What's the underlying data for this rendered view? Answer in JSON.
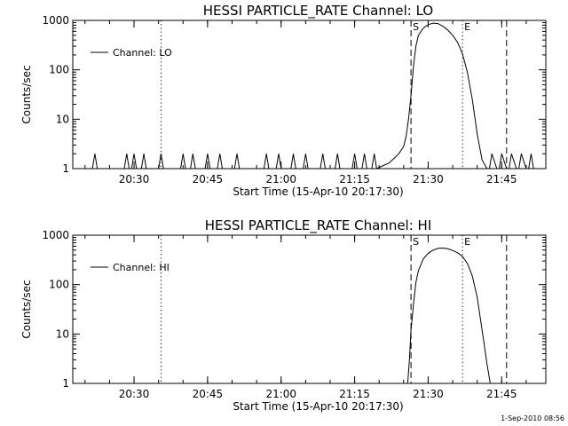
{
  "footer": "1-Sep-2010 08:56",
  "chart_data": [
    {
      "type": "line",
      "title": "HESSI PARTICLE_RATE Channel: LO",
      "xlabel": "Start Time (15-Apr-10 20:17:30)",
      "ylabel": "Counts/sec",
      "yscale": "log",
      "ylim": [
        1,
        1000
      ],
      "xlim": [
        "20:17:30",
        "21:54:00"
      ],
      "yticks": [
        "1",
        "10",
        "100",
        "1000"
      ],
      "xticks": [
        "20:30",
        "20:45",
        "21:00",
        "21:15",
        "21:30",
        "21:45"
      ],
      "legend": {
        "position": "top-left",
        "entries": [
          "Channel: LO"
        ]
      },
      "markers": [
        {
          "label": "S",
          "time": "21:26:30",
          "style": "dashed"
        },
        {
          "label": "E",
          "time": "21:37:00",
          "style": "dotted"
        },
        {
          "label": "",
          "time": "21:46:00",
          "style": "dashed"
        },
        {
          "label": "",
          "time": "20:35:30",
          "style": "dotted"
        },
        {
          "label": "",
          "time": "21:54:30",
          "style": "dotted"
        }
      ],
      "series": [
        {
          "name": "Channel: LO",
          "x": [
            "20:17:30",
            "20:21:30",
            "20:22:00",
            "20:22:30",
            "20:28:00",
            "20:28:30",
            "20:29:00",
            "20:29:30",
            "20:30:00",
            "20:30:30",
            "20:31:30",
            "20:32:00",
            "20:32:30",
            "20:35:00",
            "20:35:30",
            "20:36:00",
            "20:39:30",
            "20:40:00",
            "20:40:30",
            "20:41:30",
            "20:42:00",
            "20:42:30",
            "20:44:30",
            "20:45:00",
            "20:45:30",
            "20:47:00",
            "20:47:30",
            "20:48:00",
            "20:50:30",
            "20:51:00",
            "20:51:30",
            "20:56:30",
            "20:57:00",
            "20:57:30",
            "20:59:00",
            "20:59:30",
            "21:00:00",
            "21:02:00",
            "21:02:30",
            "21:03:00",
            "21:04:30",
            "21:05:00",
            "21:05:30",
            "21:08:00",
            "21:08:30",
            "21:09:00",
            "21:11:00",
            "21:11:30",
            "21:12:00",
            "21:14:30",
            "21:15:00",
            "21:15:30",
            "21:16:30",
            "21:17:00",
            "21:17:30",
            "21:18:30",
            "21:19:00",
            "21:19:30",
            "21:22:00",
            "21:23:00",
            "21:24:00",
            "21:25:00",
            "21:25:30",
            "21:26:00",
            "21:26:30",
            "21:27:00",
            "21:27:30",
            "21:28:00",
            "21:29:00",
            "21:30:00",
            "21:31:00",
            "21:32:00",
            "21:33:00",
            "21:34:00",
            "21:35:00",
            "21:36:00",
            "21:37:00",
            "21:38:00",
            "21:39:00",
            "21:40:00",
            "21:41:00",
            "21:42:00",
            "21:42:30",
            "21:43:00",
            "21:44:00",
            "21:44:30",
            "21:45:00",
            "21:46:00",
            "21:46:30",
            "21:47:00",
            "21:48:00",
            "21:48:30",
            "21:49:00",
            "21:50:00",
            "21:50:30",
            "21:51:00",
            "21:51:30",
            "21:52:00",
            "21:54:00"
          ],
          "y": [
            1,
            1,
            2,
            1,
            1,
            2,
            1,
            1,
            2,
            1,
            1,
            2,
            1,
            1,
            2,
            1,
            1,
            2,
            1,
            1,
            2,
            1,
            1,
            2,
            1,
            1,
            2,
            1,
            1,
            2,
            1,
            1,
            2,
            1,
            1,
            2,
            1,
            1,
            2,
            1,
            1,
            2,
            1,
            1,
            2,
            1,
            1,
            2,
            1,
            1,
            2,
            1,
            1,
            2,
            1,
            1,
            2,
            1,
            1.3,
            1.6,
            2,
            2.8,
            4.5,
            10,
            30,
            120,
            300,
            500,
            700,
            820,
            880,
            860,
            760,
            640,
            500,
            360,
            210,
            90,
            25,
            5,
            1.5,
            1,
            1,
            2,
            1,
            1,
            2,
            1,
            1,
            2,
            1,
            1,
            2,
            1,
            1,
            2,
            1,
            1,
            1
          ]
        }
      ]
    },
    {
      "type": "line",
      "title": "HESSI PARTICLE_RATE Channel: HI",
      "xlabel": "Start Time (15-Apr-10 20:17:30)",
      "ylabel": "Counts/sec",
      "yscale": "log",
      "ylim": [
        1,
        1000
      ],
      "xlim": [
        "20:17:30",
        "21:54:00"
      ],
      "yticks": [
        "1",
        "10",
        "100",
        "1000"
      ],
      "xticks": [
        "20:30",
        "20:45",
        "21:00",
        "21:15",
        "21:30",
        "21:45"
      ],
      "legend": {
        "position": "top-left",
        "entries": [
          "Channel: HI"
        ]
      },
      "markers": [
        {
          "label": "S",
          "time": "21:26:30",
          "style": "dashed"
        },
        {
          "label": "E",
          "time": "21:37:00",
          "style": "dotted"
        },
        {
          "label": "",
          "time": "21:46:00",
          "style": "dashed"
        },
        {
          "label": "",
          "time": "20:35:30",
          "style": "dotted"
        },
        {
          "label": "",
          "time": "21:54:30",
          "style": "dotted"
        }
      ],
      "series": [
        {
          "name": "Channel: HI",
          "x": [
            "21:25:50",
            "21:26:10",
            "21:26:30",
            "21:27:00",
            "21:27:30",
            "21:28:00",
            "21:29:00",
            "21:30:00",
            "21:31:00",
            "21:32:00",
            "21:33:00",
            "21:34:00",
            "21:35:00",
            "21:36:00",
            "21:37:00",
            "21:38:00",
            "21:39:00",
            "21:40:00",
            "21:41:00",
            "21:42:00",
            "21:42:40"
          ],
          "y": [
            1,
            3,
            12,
            40,
            110,
            190,
            330,
            430,
            500,
            540,
            550,
            530,
            490,
            440,
            370,
            270,
            150,
            55,
            12,
            2.5,
            1
          ]
        }
      ]
    }
  ]
}
